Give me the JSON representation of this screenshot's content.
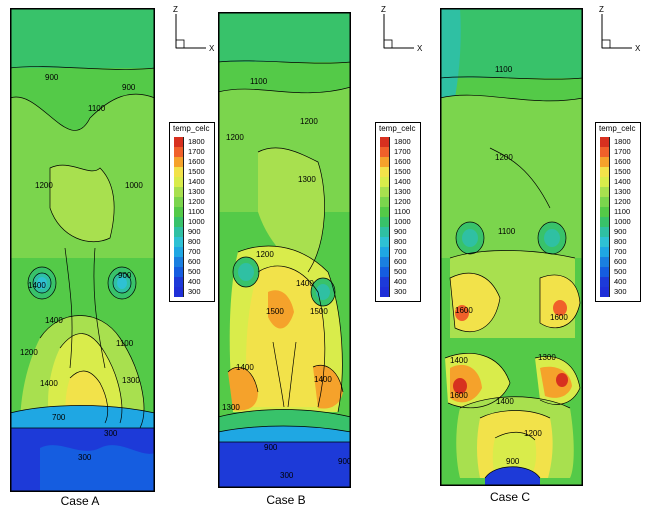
{
  "figure": {
    "cases": [
      {
        "name": "Case A",
        "contour_labels": [
          "900",
          "900",
          "1100",
          "1200",
          "1000",
          "1400",
          "900",
          "1400",
          "1200",
          "1100",
          "1400",
          "1300",
          "700",
          "300",
          "300"
        ]
      },
      {
        "name": "Case B",
        "contour_labels": [
          "1100",
          "1200",
          "1200",
          "1300",
          "1200",
          "1400",
          "1500",
          "1500",
          "1400",
          "1400",
          "1300",
          "900",
          "900",
          "300"
        ]
      },
      {
        "name": "Case C",
        "contour_labels": [
          "1100",
          "1200",
          "1100",
          "1600",
          "1600",
          "1400",
          "1300",
          "1600",
          "1400",
          "1200",
          "900"
        ]
      }
    ],
    "legend": {
      "title": "temp_celc",
      "levels": [
        "1800",
        "1700",
        "1600",
        "1500",
        "1400",
        "1300",
        "1200",
        "1100",
        "1000",
        "900",
        "800",
        "700",
        "600",
        "500",
        "400",
        "300"
      ],
      "colors": [
        "#d7301f",
        "#f0602a",
        "#f5a22b",
        "#f2e24a",
        "#d9ec4b",
        "#a8e04f",
        "#7bd54d",
        "#54ca48",
        "#38c26a",
        "#2fc0a3",
        "#2ec1d4",
        "#1fa7e3",
        "#1a7fe0",
        "#155de0",
        "#1d3ad8",
        "#1f2fd8"
      ]
    },
    "axis_labels": {
      "vertical": "Z",
      "horizontal": "X"
    }
  }
}
